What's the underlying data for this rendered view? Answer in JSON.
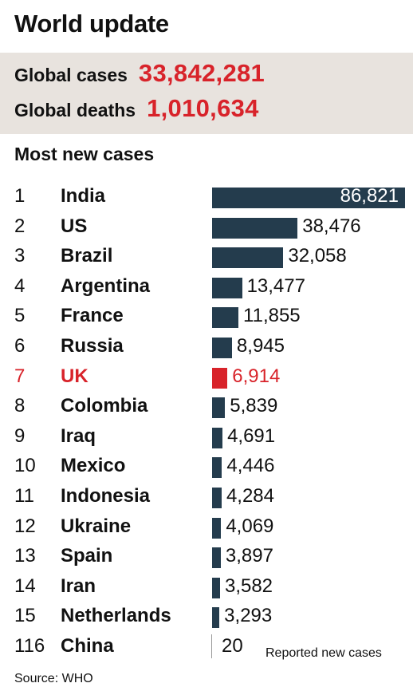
{
  "title": "World update",
  "stats": {
    "cases_label": "Global cases",
    "cases_value": "33,842,281",
    "deaths_label": "Global deaths",
    "deaths_value": "1,010,634"
  },
  "subtitle": "Most new cases",
  "colors": {
    "bar": "#243c4d",
    "highlight": "#d8232a",
    "stats_bg": "#e8e3de"
  },
  "chart_data": {
    "type": "bar",
    "orientation": "horizontal",
    "title": "Most new cases",
    "highlight": "UK",
    "rows": [
      {
        "rank": "1",
        "country": "India",
        "value": 86821,
        "label": "86,821"
      },
      {
        "rank": "2",
        "country": "US",
        "value": 38476,
        "label": "38,476"
      },
      {
        "rank": "3",
        "country": "Brazil",
        "value": 32058,
        "label": "32,058"
      },
      {
        "rank": "4",
        "country": "Argentina",
        "value": 13477,
        "label": "13,477"
      },
      {
        "rank": "5",
        "country": "France",
        "value": 11855,
        "label": "11,855"
      },
      {
        "rank": "6",
        "country": "Russia",
        "value": 8945,
        "label": "8,945"
      },
      {
        "rank": "7",
        "country": "UK",
        "value": 6914,
        "label": "6,914"
      },
      {
        "rank": "8",
        "country": "Colombia",
        "value": 5839,
        "label": "5,839"
      },
      {
        "rank": "9",
        "country": "Iraq",
        "value": 4691,
        "label": "4,691"
      },
      {
        "rank": "10",
        "country": "Mexico",
        "value": 4446,
        "label": "4,446"
      },
      {
        "rank": "11",
        "country": "Indonesia",
        "value": 4284,
        "label": "4,284"
      },
      {
        "rank": "12",
        "country": "Ukraine",
        "value": 4069,
        "label": "4,069"
      },
      {
        "rank": "13",
        "country": "Spain",
        "value": 3897,
        "label": "3,897"
      },
      {
        "rank": "14",
        "country": "Iran",
        "value": 3582,
        "label": "3,582"
      },
      {
        "rank": "15",
        "country": "Netherlands",
        "value": 3293,
        "label": "3,293"
      },
      {
        "rank": "116",
        "country": "China",
        "value": 20,
        "label": "20"
      }
    ],
    "legend_note": "Reported new cases"
  },
  "source": "Source: WHO"
}
